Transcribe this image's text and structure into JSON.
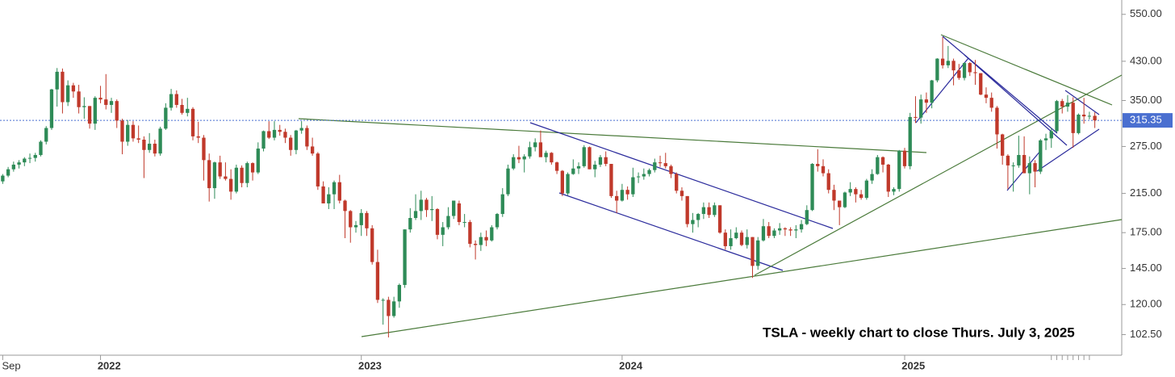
{
  "chart_data": {
    "type": "candlestick",
    "annotation": "TSLA - weekly chart to close Thurs. July 3, 2025",
    "up_color": "#2e8b57",
    "down_color": "#c0392b",
    "last_price_color": "#4a6fd0",
    "log_scale": true,
    "grid": false,
    "ylim": [
      92,
      593
    ],
    "yticks": [
      {
        "value": 102.5,
        "label": "102.50"
      },
      {
        "value": 120,
        "label": "120.00"
      },
      {
        "value": 145,
        "label": "145.00"
      },
      {
        "value": 175,
        "label": "175.00"
      },
      {
        "value": 215,
        "label": "215.00"
      },
      {
        "value": 275,
        "label": "275.00"
      },
      {
        "value": 350,
        "label": "350.00"
      },
      {
        "value": 430,
        "label": "430.00"
      },
      {
        "value": 550,
        "label": "550.00"
      }
    ],
    "last_price": 315.35,
    "categories": [
      null,
      "Sep",
      null,
      null,
      null,
      null,
      null,
      null,
      null,
      null,
      null,
      null,
      null,
      null,
      null,
      null,
      null,
      null,
      null,
      "2022",
      null,
      null,
      null,
      null,
      null,
      null,
      null,
      null,
      null,
      null,
      null,
      null,
      null,
      null,
      null,
      null,
      null,
      null,
      null,
      null,
      null,
      null,
      null,
      null,
      null,
      null,
      null,
      null,
      null,
      null,
      null,
      null,
      null,
      null,
      null,
      null,
      null,
      null,
      null,
      null,
      null,
      null,
      null,
      null,
      null,
      null,
      null,
      "2023",
      null,
      null,
      null,
      null,
      null,
      null,
      null,
      null,
      null,
      null,
      null,
      null,
      null,
      null,
      null,
      null,
      null,
      null,
      null,
      null,
      null,
      null,
      null,
      null,
      null,
      null,
      null,
      null,
      null,
      null,
      null,
      null,
      null,
      null,
      null,
      null,
      null,
      null,
      null,
      null,
      null,
      null,
      null,
      null,
      null,
      null,
      null,
      "2024",
      null,
      null,
      null,
      null,
      null,
      null,
      null,
      null,
      null,
      null,
      null,
      null,
      null,
      null,
      null,
      null,
      null,
      null,
      null,
      null,
      null,
      null,
      null,
      null,
      null,
      null,
      null,
      null,
      null,
      null,
      null,
      null,
      null,
      null,
      null,
      null,
      null,
      null,
      null,
      null,
      null,
      null,
      null,
      null,
      null,
      null,
      null,
      null,
      null,
      null,
      null,
      "2025",
      null,
      null,
      null,
      null,
      null,
      null,
      null,
      null,
      null,
      null,
      null,
      null,
      null,
      null,
      null,
      null,
      null,
      null,
      null,
      null,
      null,
      null,
      null,
      null,
      null,
      null
    ],
    "candles": [
      [
        229,
        238,
        226,
        236
      ],
      [
        236,
        247,
        234,
        244
      ],
      [
        244,
        254,
        241,
        250
      ],
      [
        250,
        256,
        245,
        253
      ],
      [
        253,
        260,
        248,
        258
      ],
      [
        258,
        265,
        252,
        259
      ],
      [
        259,
        266,
        254,
        263
      ],
      [
        263,
        284,
        261,
        282
      ],
      [
        282,
        306,
        278,
        303
      ],
      [
        303,
        372,
        300,
        371
      ],
      [
        371,
        415,
        339,
        407
      ],
      [
        407,
        414,
        327,
        347
      ],
      [
        347,
        389,
        340,
        379
      ],
      [
        379,
        384,
        355,
        367
      ],
      [
        367,
        380,
        327,
        338
      ],
      [
        338,
        356,
        318,
        340
      ],
      [
        340,
        340,
        302,
        310
      ],
      [
        310,
        358,
        300,
        355
      ],
      [
        355,
        378,
        345,
        352
      ],
      [
        352,
        402,
        334,
        342
      ],
      [
        342,
        355,
        328,
        349
      ],
      [
        349,
        352,
        303,
        315
      ],
      [
        315,
        318,
        264,
        282
      ],
      [
        282,
        316,
        276,
        308
      ],
      [
        308,
        314,
        282,
        287
      ],
      [
        287,
        307,
        280,
        285
      ],
      [
        285,
        290,
        233,
        270
      ],
      [
        270,
        295,
        266,
        279
      ],
      [
        279,
        285,
        261,
        265
      ],
      [
        265,
        305,
        262,
        302
      ],
      [
        302,
        345,
        300,
        337
      ],
      [
        337,
        372,
        332,
        362
      ],
      [
        362,
        369,
        337,
        342
      ],
      [
        342,
        353,
        325,
        328
      ],
      [
        328,
        355,
        322,
        335
      ],
      [
        335,
        338,
        284,
        290
      ],
      [
        290,
        313,
        280,
        288
      ],
      [
        288,
        292,
        230,
        256
      ],
      [
        256,
        265,
        206,
        221
      ],
      [
        221,
        254,
        209,
        253
      ],
      [
        253,
        262,
        232,
        235
      ],
      [
        235,
        253,
        230,
        232
      ],
      [
        232,
        244,
        208,
        217
      ],
      [
        217,
        250,
        215,
        246
      ],
      [
        246,
        249,
        222,
        227
      ],
      [
        227,
        254,
        222,
        252
      ],
      [
        252,
        253,
        230,
        240
      ],
      [
        240,
        281,
        238,
        272
      ],
      [
        272,
        299,
        268,
        298
      ],
      [
        298,
        314,
        286,
        288
      ],
      [
        288,
        314,
        284,
        300
      ],
      [
        300,
        308,
        291,
        297
      ],
      [
        297,
        302,
        280,
        288
      ],
      [
        288,
        292,
        262,
        270
      ],
      [
        270,
        300,
        264,
        299
      ],
      [
        299,
        314,
        294,
        303
      ],
      [
        303,
        307,
        270,
        275
      ],
      [
        275,
        288,
        262,
        265
      ],
      [
        265,
        267,
        219,
        223
      ],
      [
        223,
        229,
        204,
        204
      ],
      [
        204,
        222,
        198,
        214
      ],
      [
        214,
        230,
        198,
        228
      ],
      [
        228,
        237,
        204,
        207
      ],
      [
        207,
        208,
        170,
        196
      ],
      [
        196,
        197,
        166,
        180
      ],
      [
        180,
        186,
        175,
        182
      ],
      [
        182,
        198,
        172,
        194
      ],
      [
        194,
        196,
        172,
        179
      ],
      [
        179,
        182,
        148,
        150
      ],
      [
        150,
        160,
        121,
        123
      ],
      [
        123,
        124,
        108,
        123
      ],
      [
        123,
        125,
        101,
        113
      ],
      [
        113,
        125,
        112,
        122
      ],
      [
        122,
        134,
        118,
        133
      ],
      [
        133,
        178,
        131,
        178
      ],
      [
        178,
        199,
        175,
        189
      ],
      [
        189,
        214,
        187,
        196
      ],
      [
        196,
        218,
        187,
        208
      ],
      [
        208,
        210,
        190,
        197
      ],
      [
        197,
        212,
        186,
        198
      ],
      [
        198,
        199,
        169,
        173
      ],
      [
        173,
        185,
        163,
        180
      ],
      [
        180,
        200,
        178,
        191
      ],
      [
        191,
        207,
        188,
        207
      ],
      [
        204,
        207,
        182,
        185
      ],
      [
        185,
        193,
        180,
        185
      ],
      [
        185,
        187,
        162,
        165
      ],
      [
        165,
        168,
        152,
        164
      ],
      [
        164,
        175,
        159,
        171
      ],
      [
        171,
        177,
        163,
        168
      ],
      [
        168,
        182,
        167,
        180
      ],
      [
        180,
        194,
        178,
        193
      ],
      [
        193,
        221,
        190,
        214
      ],
      [
        214,
        250,
        212,
        245
      ],
      [
        245,
        264,
        243,
        260
      ],
      [
        260,
        276,
        252,
        257
      ],
      [
        257,
        264,
        240,
        261
      ],
      [
        261,
        282,
        258,
        274
      ],
      [
        274,
        287,
        268,
        281
      ],
      [
        281,
        299,
        262,
        260
      ],
      [
        260,
        269,
        253,
        266
      ],
      [
        266,
        267,
        250,
        253
      ],
      [
        253,
        254,
        238,
        242
      ],
      [
        242,
        243,
        212,
        215
      ],
      [
        215,
        240,
        213,
        238
      ],
      [
        238,
        257,
        237,
        245
      ],
      [
        245,
        253,
        238,
        248
      ],
      [
        248,
        277,
        246,
        274
      ],
      [
        274,
        275,
        244,
        244
      ],
      [
        244,
        255,
        234,
        250
      ],
      [
        250,
        263,
        247,
        260
      ],
      [
        260,
        268,
        248,
        251
      ],
      [
        251,
        251,
        210,
        212
      ],
      [
        212,
        218,
        194,
        207
      ],
      [
        207,
        226,
        206,
        219
      ],
      [
        219,
        223,
        208,
        214
      ],
      [
        214,
        246,
        211,
        234
      ],
      [
        234,
        240,
        227,
        235
      ],
      [
        235,
        245,
        231,
        238
      ],
      [
        238,
        245,
        235,
        243
      ],
      [
        243,
        258,
        240,
        253
      ],
      [
        253,
        262,
        247,
        252
      ],
      [
        252,
        266,
        245,
        248
      ],
      [
        248,
        250,
        233,
        238
      ],
      [
        238,
        240,
        215,
        218
      ],
      [
        218,
        222,
        207,
        212
      ],
      [
        212,
        212,
        180,
        183
      ],
      [
        183,
        194,
        175,
        187
      ],
      [
        187,
        194,
        180,
        193
      ],
      [
        193,
        205,
        188,
        200
      ],
      [
        200,
        205,
        189,
        192
      ],
      [
        192,
        205,
        190,
        202
      ],
      [
        202,
        202,
        174,
        175
      ],
      [
        175,
        178,
        160,
        163
      ],
      [
        163,
        178,
        160,
        170
      ],
      [
        170,
        180,
        169,
        175
      ],
      [
        175,
        177,
        163,
        164
      ],
      [
        164,
        178,
        161,
        171
      ],
      [
        171,
        171,
        138,
        147
      ],
      [
        147,
        171,
        144,
        168
      ],
      [
        168,
        188,
        167,
        181
      ],
      [
        181,
        185,
        170,
        172
      ],
      [
        172,
        179,
        170,
        177
      ],
      [
        177,
        184,
        173,
        179
      ],
      [
        179,
        180,
        172,
        178
      ],
      [
        178,
        180,
        172,
        177
      ],
      [
        177,
        182,
        170,
        178
      ],
      [
        178,
        187,
        175,
        183
      ],
      [
        183,
        202,
        182,
        197
      ],
      [
        197,
        252,
        196,
        251
      ],
      [
        251,
        271,
        241,
        248
      ],
      [
        248,
        257,
        235,
        239
      ],
      [
        239,
        244,
        215,
        219
      ],
      [
        219,
        225,
        197,
        207
      ],
      [
        207,
        207,
        182,
        200
      ],
      [
        200,
        217,
        199,
        216
      ],
      [
        216,
        228,
        212,
        220
      ],
      [
        220,
        222,
        205,
        214
      ],
      [
        214,
        219,
        208,
        210
      ],
      [
        210,
        232,
        208,
        230
      ],
      [
        230,
        244,
        226,
        238
      ],
      [
        238,
        263,
        237,
        260
      ],
      [
        260,
        261,
        240,
        250
      ],
      [
        250,
        251,
        211,
        217
      ],
      [
        217,
        222,
        213,
        220
      ],
      [
        220,
        270,
        217,
        269
      ],
      [
        269,
        273,
        245,
        248
      ],
      [
        248,
        328,
        244,
        321
      ],
      [
        321,
        358,
        311,
        320
      ],
      [
        320,
        361,
        310,
        352
      ],
      [
        352,
        365,
        328,
        346
      ],
      [
        346,
        390,
        336,
        389
      ],
      [
        389,
        437,
        385,
        436
      ],
      [
        436,
        488,
        414,
        421
      ],
      [
        421,
        466,
        415,
        431
      ],
      [
        431,
        436,
        379,
        410
      ],
      [
        410,
        424,
        390,
        394
      ],
      [
        394,
        428,
        389,
        426
      ],
      [
        426,
        428,
        398,
        406
      ],
      [
        406,
        433,
        380,
        404
      ],
      [
        404,
        404,
        360,
        361
      ],
      [
        361,
        375,
        345,
        355
      ],
      [
        355,
        365,
        330,
        337
      ],
      [
        337,
        340,
        272,
        293
      ],
      [
        293,
        294,
        250,
        262
      ],
      [
        262,
        264,
        220,
        249
      ],
      [
        249,
        253,
        217,
        249
      ],
      [
        249,
        291,
        246,
        263
      ],
      [
        263,
        290,
        239,
        239
      ],
      [
        239,
        261,
        214,
        252
      ],
      [
        252,
        256,
        222,
        241
      ],
      [
        241,
        286,
        238,
        284
      ],
      [
        284,
        294,
        270,
        287
      ],
      [
        287,
        303,
        273,
        298
      ],
      [
        298,
        351,
        296,
        349
      ],
      [
        349,
        353,
        327,
        339
      ],
      [
        339,
        360,
        330,
        346
      ],
      [
        346,
        356,
        273,
        295
      ],
      [
        295,
        327,
        293,
        325
      ],
      [
        325,
        355,
        310,
        322
      ],
      [
        322,
        330,
        317,
        323
      ],
      [
        323,
        329,
        303,
        315.35
      ]
    ]
  }
}
